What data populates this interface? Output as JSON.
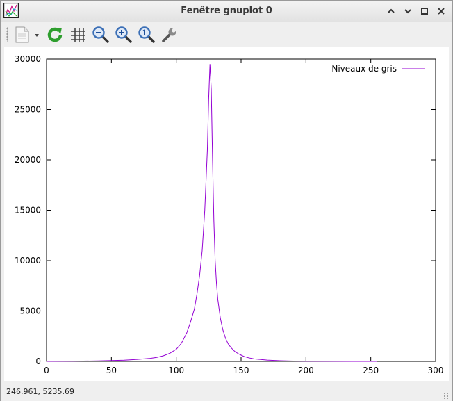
{
  "window": {
    "title": "Fenêtre gnuplot 0",
    "buttons": [
      "minimize",
      "maximize",
      "close"
    ]
  },
  "toolbar": {
    "buttons": [
      {
        "name": "export-icon"
      },
      {
        "name": "replot-icon"
      },
      {
        "name": "grid-icon"
      },
      {
        "name": "zoom-out-icon"
      },
      {
        "name": "zoom-in-icon"
      },
      {
        "name": "zoom-reset-icon"
      },
      {
        "name": "settings-wrench-icon"
      }
    ]
  },
  "status": {
    "coordinates": "246.961,  5235.69"
  },
  "colors": {
    "series": "#9400d3",
    "replot": "#2e9e2e",
    "zoom": "#3b6fb6"
  },
  "chart_data": {
    "type": "line",
    "title": "",
    "xlabel": "",
    "ylabel": "",
    "xlim": [
      0,
      300
    ],
    "ylim": [
      0,
      30000
    ],
    "xticks": [
      0,
      50,
      100,
      150,
      200,
      250,
      300
    ],
    "yticks": [
      0,
      5000,
      10000,
      15000,
      20000,
      25000,
      30000
    ],
    "grid": false,
    "legend_position": "top-right",
    "series": [
      {
        "name": "Niveaux de gris",
        "color": "#9400d3",
        "x": [
          0,
          20,
          40,
          60,
          70,
          80,
          85,
          90,
          95,
          100,
          104,
          108,
          111,
          114,
          116,
          118,
          120,
          122,
          124,
          125,
          126,
          127,
          128,
          129,
          130,
          131,
          132,
          134,
          136,
          138,
          140,
          142,
          145,
          148,
          152,
          156,
          160,
          170,
          180,
          190,
          200,
          220,
          240,
          255
        ],
        "y": [
          0,
          20,
          50,
          120,
          200,
          300,
          400,
          550,
          800,
          1200,
          1800,
          2800,
          3900,
          5200,
          6700,
          8500,
          11000,
          15000,
          21000,
          26000,
          29500,
          27000,
          20000,
          14000,
          10000,
          7800,
          6200,
          4300,
          3100,
          2300,
          1750,
          1400,
          1000,
          750,
          500,
          350,
          250,
          130,
          70,
          35,
          15,
          5,
          2,
          0
        ]
      }
    ]
  }
}
